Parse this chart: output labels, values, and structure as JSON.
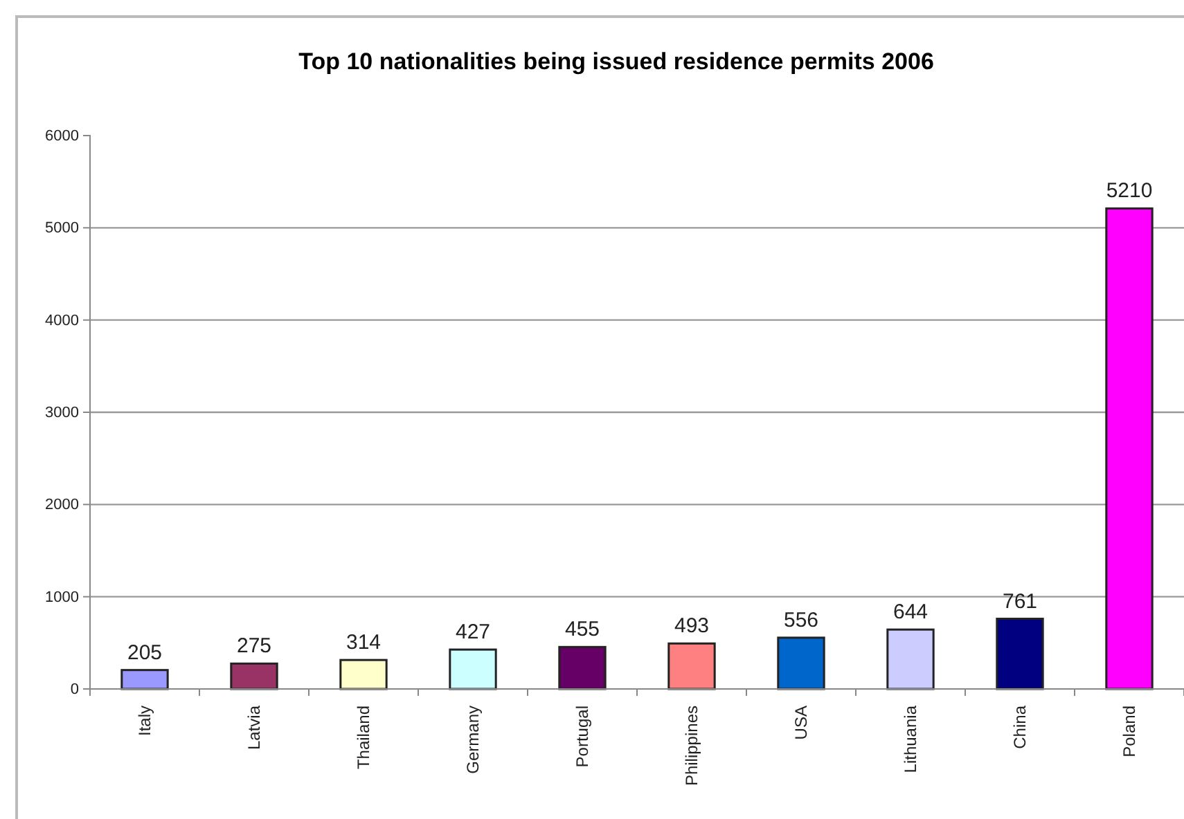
{
  "chart_data": {
    "type": "bar",
    "title": "Top 10 nationalities being issued residence permits 2006",
    "categories": [
      "Italy",
      "Latvia",
      "Thailand",
      "Germany",
      "Portugal",
      "Philippines",
      "USA",
      "Lithuania",
      "China",
      "Poland"
    ],
    "values": [
      205,
      275,
      314,
      427,
      455,
      493,
      556,
      644,
      761,
      5210
    ],
    "colors": [
      "#9999ff",
      "#993366",
      "#ffffcc",
      "#ccffff",
      "#660066",
      "#ff8080",
      "#0066cc",
      "#ccccff",
      "#000080",
      "#ff00ff"
    ],
    "ylim": [
      0,
      6000
    ],
    "yticks": [
      0,
      1000,
      2000,
      3000,
      4000,
      5000,
      6000
    ],
    "grid": "y",
    "data_labels": true
  }
}
